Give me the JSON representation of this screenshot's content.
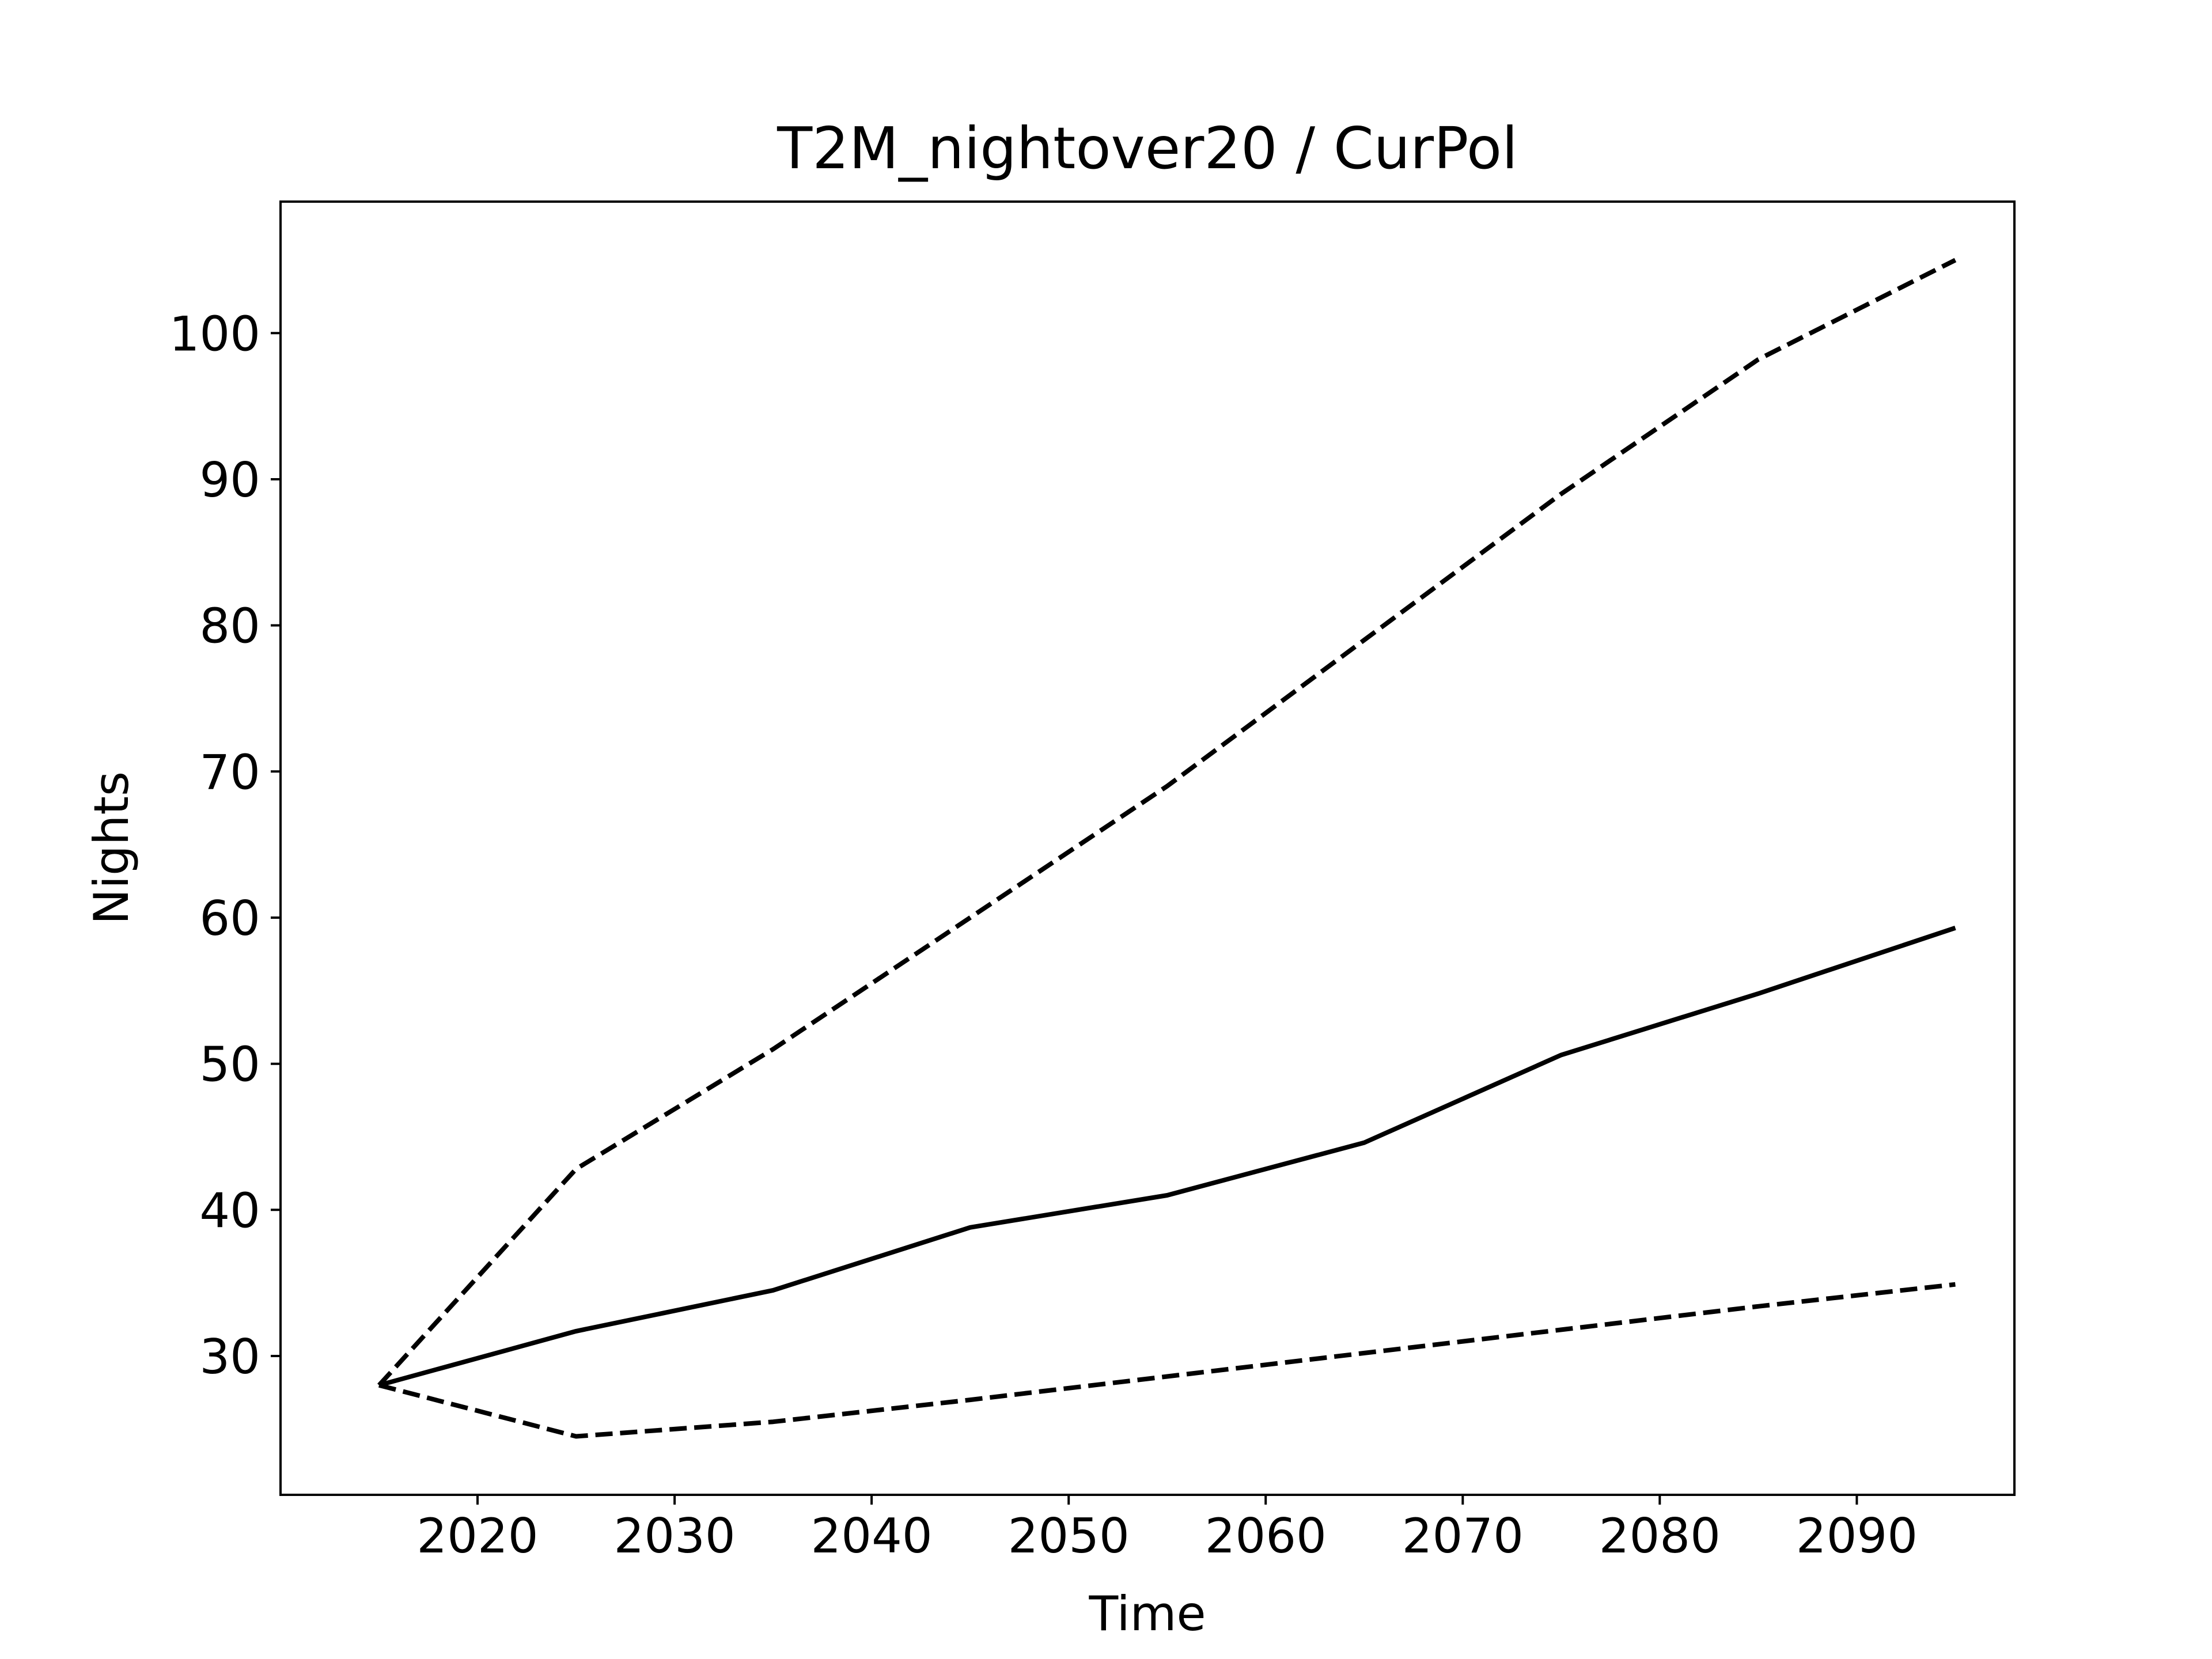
{
  "chart_data": {
    "type": "line",
    "title": "T2M_nightover20 / CurPol",
    "xlabel": "Time",
    "ylabel": "Nights",
    "x": [
      2015,
      2025,
      2035,
      2045,
      2055,
      2065,
      2075,
      2085,
      2095
    ],
    "xlim": [
      2010,
      2098
    ],
    "ylim": [
      20.5,
      109
    ],
    "xticks": [
      "2020",
      "2030",
      "2040",
      "2050",
      "2060",
      "2070",
      "2080",
      "2090"
    ],
    "yticks": [
      "30",
      "40",
      "50",
      "60",
      "70",
      "80",
      "90",
      "100"
    ],
    "grid": false,
    "series": [
      {
        "style": "dashed",
        "color": "#000000",
        "values": [
          28.0,
          42.8,
          51.0,
          60.0,
          69.0,
          79.0,
          89.0,
          98.2,
          105.0
        ]
      },
      {
        "style": "solid",
        "color": "#000000",
        "values": [
          28.0,
          31.7,
          34.5,
          38.8,
          41.0,
          44.6,
          50.6,
          54.8,
          59.3
        ]
      },
      {
        "style": "dashed",
        "color": "#000000",
        "values": [
          28.0,
          24.5,
          25.5,
          27.0,
          28.6,
          30.2,
          31.8,
          33.4,
          34.9
        ]
      }
    ]
  }
}
